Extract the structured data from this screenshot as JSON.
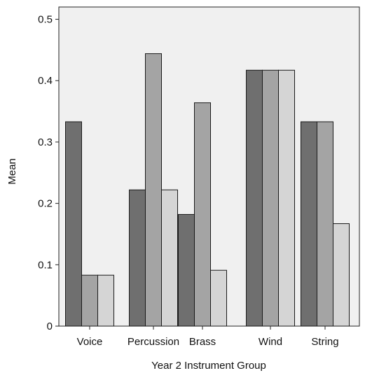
{
  "chart_data": {
    "type": "bar",
    "title": "",
    "xlabel": "Year 2 Instrument Group",
    "ylabel": "Mean",
    "categories": [
      "Voice",
      "Percussion",
      "Brass",
      "Wind",
      "String"
    ],
    "ylim": [
      0,
      0.52
    ],
    "yticks": [
      0,
      0.1,
      0.2,
      0.3,
      0.4,
      0.5
    ],
    "ytick_labels": [
      "0",
      "0.1",
      "0.2",
      "0.3",
      "0.4",
      "0.5"
    ],
    "grid": false,
    "legend": null,
    "series": [
      {
        "values": [
          0.333,
          0.222,
          0.182,
          0.417,
          0.333
        ],
        "color": "#6f6f6f"
      },
      {
        "values": [
          0.083,
          0.444,
          0.364,
          0.417,
          0.333
        ],
        "color": "#a4a4a4"
      },
      {
        "values": [
          0.083,
          0.222,
          0.091,
          0.417,
          0.167
        ],
        "color": "#d5d5d5"
      }
    ],
    "plot_background": "#f0f0f0",
    "bar_stroke": "#1a1a1a"
  }
}
